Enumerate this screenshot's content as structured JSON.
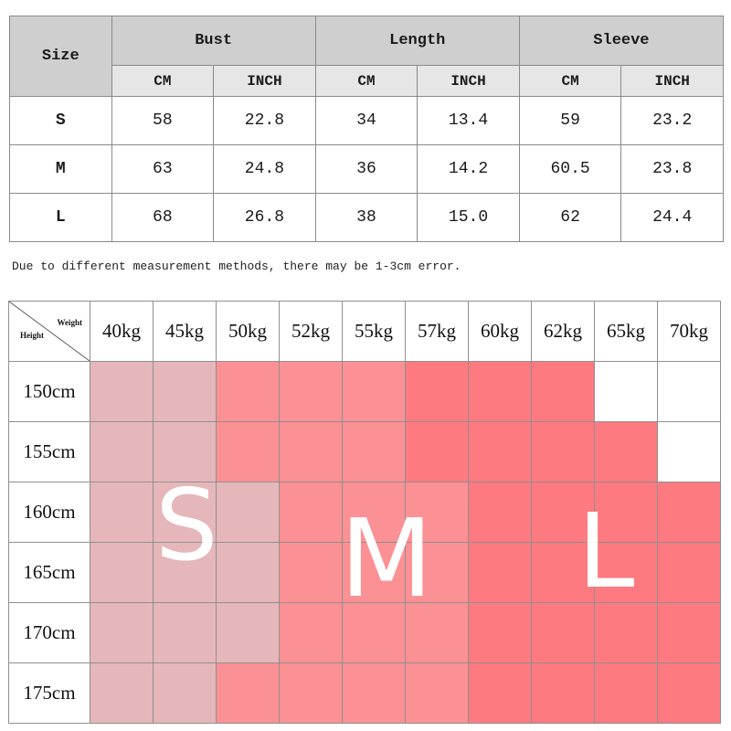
{
  "measurement_table": {
    "size_header": "Size",
    "groups": [
      "Bust",
      "Length",
      "Sleeve"
    ],
    "units": [
      "CM",
      "INCH"
    ],
    "rows": [
      {
        "size": "S",
        "values": [
          "58",
          "22.8",
          "34",
          "13.4",
          "59",
          "23.2"
        ]
      },
      {
        "size": "M",
        "values": [
          "63",
          "24.8",
          "36",
          "14.2",
          "60.5",
          "23.8"
        ]
      },
      {
        "size": "L",
        "values": [
          "68",
          "26.8",
          "38",
          "15.0",
          "62",
          "24.4"
        ]
      }
    ]
  },
  "note": "Due to different measurement methods, there may be 1-3cm error.",
  "size_grid": {
    "corner_weight_label": "Weight",
    "corner_height_label": "Height",
    "weights": [
      "40kg",
      "45kg",
      "50kg",
      "52kg",
      "55kg",
      "57kg",
      "60kg",
      "62kg",
      "65kg",
      "70kg"
    ],
    "heights": [
      "150cm",
      "155cm",
      "160cm",
      "165cm",
      "170cm",
      "175cm"
    ],
    "cells": [
      [
        "S",
        "S",
        "M",
        "M",
        "M",
        "L",
        "L",
        "L",
        "",
        ""
      ],
      [
        "S",
        "S",
        "M",
        "M",
        "M",
        "L",
        "L",
        "L",
        "L",
        ""
      ],
      [
        "S",
        "S",
        "S",
        "M",
        "M",
        "M",
        "L",
        "L",
        "L",
        "L"
      ],
      [
        "S",
        "S",
        "S",
        "M",
        "M",
        "M",
        "L",
        "L",
        "L",
        "L"
      ],
      [
        "S",
        "S",
        "S",
        "M",
        "M",
        "M",
        "L",
        "L",
        "L",
        "L"
      ],
      [
        "S",
        "S",
        "M",
        "M",
        "M",
        "M",
        "L",
        "L",
        "L",
        "L"
      ]
    ],
    "size_letters": [
      "S",
      "M",
      "L"
    ],
    "colors": {
      "S": "#e5b7ba",
      "M": "#fb9194",
      "L": "#fc7a80",
      "empty": "#ffffff"
    }
  }
}
